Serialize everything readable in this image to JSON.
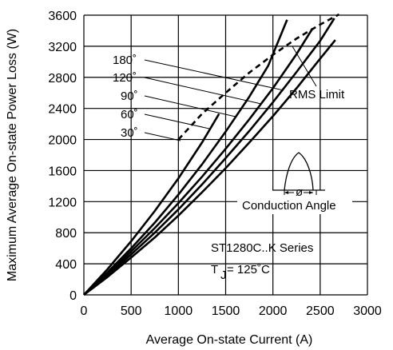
{
  "chart_data": {
    "type": "line",
    "title": "",
    "xlabel": "Average On-state Current (A)",
    "ylabel": "Maximum Average On-state Power Loss (W)",
    "xlim": [
      0,
      3000
    ],
    "ylim": [
      0,
      3600
    ],
    "x_ticks": [
      "0",
      "500",
      "1000",
      "1500",
      "2000",
      "2500",
      "3000"
    ],
    "y_ticks": [
      "0",
      "400",
      "800",
      "1200",
      "1600",
      "2000",
      "2400",
      "2800",
      "3200",
      "3600"
    ],
    "grid": true,
    "series": [
      {
        "name": "30°",
        "points": [
          [
            0,
            0
          ],
          [
            250,
            330
          ],
          [
            500,
            690
          ],
          [
            750,
            1080
          ],
          [
            1000,
            1500
          ],
          [
            1250,
            1960
          ],
          [
            1430,
            2330
          ]
        ]
      },
      {
        "name": "60°",
        "points": [
          [
            0,
            0
          ],
          [
            250,
            290
          ],
          [
            500,
            600
          ],
          [
            750,
            930
          ],
          [
            1000,
            1290
          ],
          [
            1250,
            1680
          ],
          [
            1500,
            2100
          ],
          [
            1750,
            2550
          ],
          [
            1950,
            2950
          ],
          [
            2150,
            3540
          ]
        ]
      },
      {
        "name": "90°",
        "points": [
          [
            0,
            0
          ],
          [
            250,
            270
          ],
          [
            500,
            560
          ],
          [
            750,
            860
          ],
          [
            1000,
            1180
          ],
          [
            1250,
            1520
          ],
          [
            1500,
            1880
          ],
          [
            1750,
            2260
          ],
          [
            2000,
            2660
          ],
          [
            2250,
            3100
          ],
          [
            2420,
            3430
          ]
        ]
      },
      {
        "name": "120°",
        "points": [
          [
            0,
            0
          ],
          [
            250,
            250
          ],
          [
            500,
            520
          ],
          [
            750,
            800
          ],
          [
            1000,
            1100
          ],
          [
            1250,
            1420
          ],
          [
            1500,
            1760
          ],
          [
            1750,
            2110
          ],
          [
            2000,
            2480
          ],
          [
            2250,
            2870
          ],
          [
            2500,
            3270
          ],
          [
            2650,
            3560
          ]
        ]
      },
      {
        "name": "180°",
        "points": [
          [
            0,
            0
          ],
          [
            250,
            230
          ],
          [
            500,
            480
          ],
          [
            750,
            740
          ],
          [
            1000,
            1020
          ],
          [
            1250,
            1320
          ],
          [
            1500,
            1630
          ],
          [
            1750,
            1960
          ],
          [
            2000,
            2300
          ],
          [
            2250,
            2660
          ],
          [
            2500,
            3040
          ],
          [
            2660,
            3280
          ]
        ]
      },
      {
        "name": "RMS Limit",
        "style": "dashed",
        "points": [
          [
            1000,
            2000
          ],
          [
            1250,
            2330
          ],
          [
            1500,
            2600
          ],
          [
            1750,
            2860
          ],
          [
            2000,
            3090
          ],
          [
            2250,
            3300
          ],
          [
            2500,
            3480
          ],
          [
            2700,
            3610
          ]
        ]
      }
    ],
    "labels": {
      "deg_180": "180˚",
      "deg_120": "120˚",
      "deg_90": "90˚",
      "deg_60": "60˚",
      "deg_30": "30˚",
      "rms": "RMS Limit",
      "conduction": "Conduction Angle",
      "phi": "ø",
      "series_name": "ST1280C..K Series",
      "tj_t": "T",
      "tj_sub": "J",
      "tj_rest": " = 125˚C"
    }
  }
}
